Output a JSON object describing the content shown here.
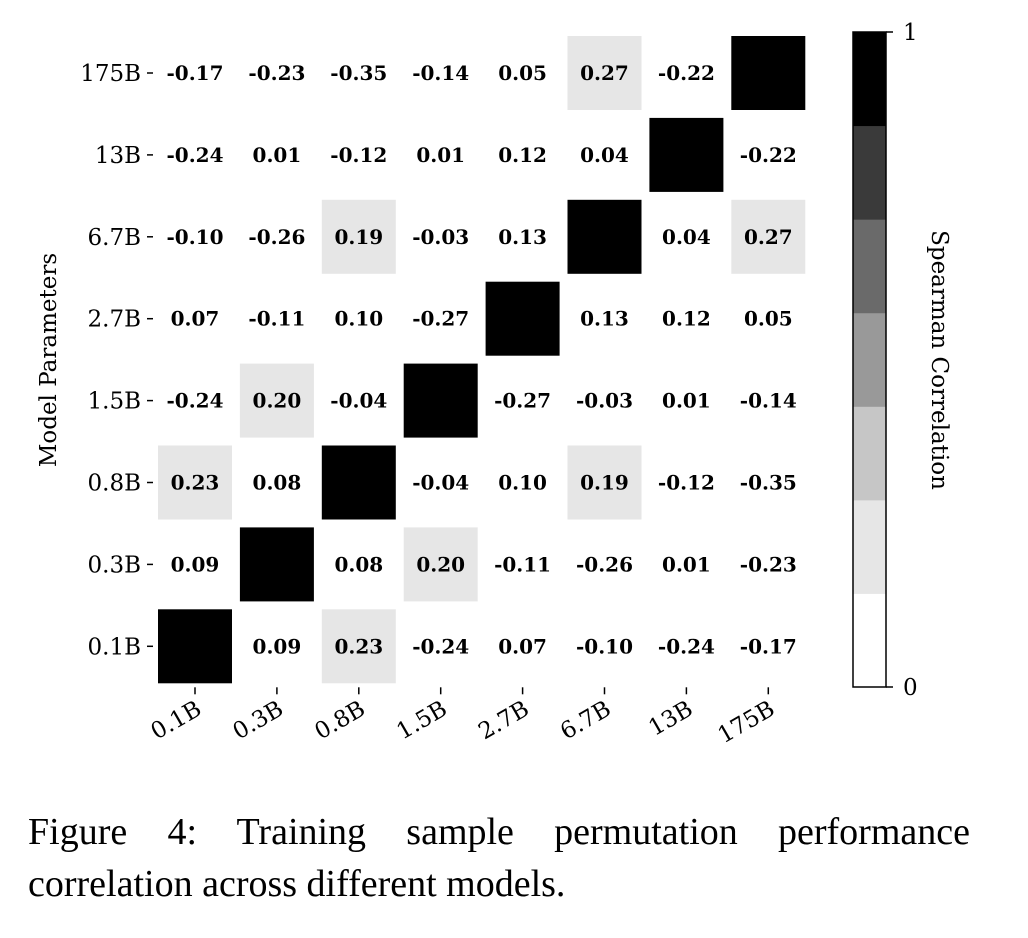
{
  "chart_data": {
    "type": "heatmap",
    "row_labels": [
      "175B",
      "13B",
      "6.7B",
      "2.7B",
      "1.5B",
      "0.8B",
      "0.3B",
      "0.1B"
    ],
    "col_labels": [
      "0.1B",
      "0.3B",
      "0.8B",
      "1.5B",
      "2.7B",
      "6.7B",
      "13B",
      "175B"
    ],
    "values": [
      [
        -0.17,
        -0.23,
        -0.35,
        -0.14,
        0.05,
        0.27,
        -0.22,
        1
      ],
      [
        -0.24,
        0.01,
        -0.12,
        0.01,
        0.12,
        0.04,
        1,
        -0.22
      ],
      [
        -0.1,
        -0.26,
        0.19,
        -0.03,
        0.13,
        1,
        0.04,
        0.27
      ],
      [
        0.07,
        -0.11,
        0.1,
        -0.27,
        1,
        0.13,
        0.12,
        0.05
      ],
      [
        -0.24,
        0.2,
        -0.04,
        1,
        -0.27,
        -0.03,
        0.01,
        -0.14
      ],
      [
        0.23,
        0.08,
        1,
        -0.04,
        0.1,
        0.19,
        -0.12,
        -0.35
      ],
      [
        0.09,
        1,
        0.08,
        0.2,
        -0.11,
        -0.26,
        0.01,
        -0.23
      ],
      [
        1,
        0.09,
        0.23,
        -0.24,
        0.07,
        -0.1,
        -0.24,
        -0.17
      ]
    ],
    "ylabel": "Model Parameters",
    "xlabel": "",
    "colorbar": {
      "label": "Spearman Correlation",
      "min": 0,
      "max": 1,
      "tick_labels": [
        "0",
        "1"
      ],
      "levels": 7,
      "colors": [
        "#ffffff",
        "#e6e6e6",
        "#c6c6c6",
        "#999999",
        "#6a6a6a",
        "#3a3a3a",
        "#000000"
      ]
    },
    "value_format": "2 decimals",
    "diagonal_label": ""
  },
  "caption": {
    "line1": "Figure 4:  Training sample permutation performance",
    "line2": "correlation across different models."
  }
}
